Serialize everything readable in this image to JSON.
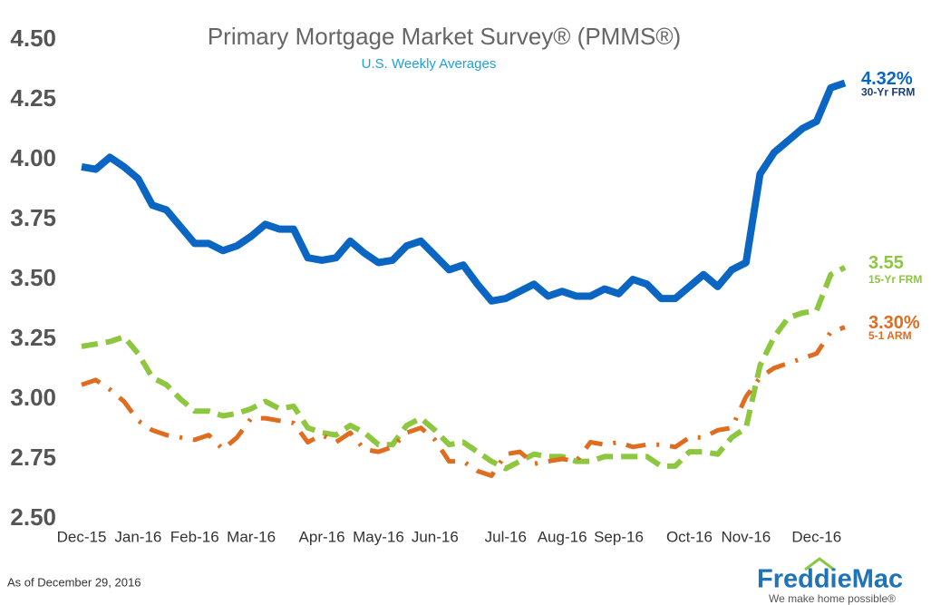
{
  "chart_data": {
    "type": "line",
    "title": "Primary Mortgage Market Survey® (PMMS®)",
    "subtitle": "U.S. Weekly Averages",
    "footnote": "As of December 29, 2016",
    "logo": "FreddieMac",
    "tagline": "We make home possible®",
    "categories": [
      "Dec-15",
      null,
      null,
      null,
      "Jan-16",
      null,
      null,
      null,
      "Feb-16",
      null,
      null,
      null,
      "Mar-16",
      null,
      null,
      null,
      null,
      "Apr-16",
      null,
      null,
      null,
      "May-16",
      null,
      null,
      null,
      "Jun-16",
      null,
      null,
      null,
      null,
      "Jul-16",
      null,
      null,
      null,
      "Aug-16",
      null,
      null,
      null,
      "Sep-16",
      null,
      null,
      null,
      null,
      "Oct-16",
      null,
      null,
      null,
      "Nov-16",
      null,
      null,
      null,
      null,
      "Dec-16",
      null,
      null
    ],
    "ylim": [
      2.5,
      4.5
    ],
    "yticks": [
      {
        "value": 2.5,
        "label": "2.50"
      },
      2.75,
      {
        "value": 3,
        "label": "3.00"
      },
      3.25,
      {
        "value": 3.5,
        "label": "3.50"
      },
      3.75,
      {
        "value": 4,
        "label": "4.00"
      },
      4.25,
      {
        "value": 4.5,
        "label": "4.50"
      }
    ],
    "grid": false,
    "series": [
      {
        "name": "30-Yr FRM",
        "color": "#0a66c2",
        "line_style": "solid",
        "values": [
          3.97,
          3.96,
          4.01,
          3.97,
          3.92,
          3.81,
          3.79,
          3.72,
          3.65,
          3.65,
          3.62,
          3.64,
          3.68,
          3.73,
          3.71,
          3.71,
          3.59,
          3.58,
          3.59,
          3.66,
          3.61,
          3.57,
          3.58,
          3.64,
          3.66,
          3.6,
          3.54,
          3.56,
          3.48,
          3.41,
          3.42,
          3.45,
          3.48,
          3.43,
          3.45,
          3.43,
          3.43,
          3.46,
          3.44,
          3.5,
          3.48,
          3.42,
          3.42,
          3.47,
          3.52,
          3.47,
          3.54,
          3.57,
          3.94,
          4.03,
          4.08,
          4.13,
          4.16,
          4.3,
          4.32
        ],
        "value_labels": [
          null,
          null,
          null,
          null,
          null,
          null,
          null,
          null,
          null,
          null,
          null,
          null,
          null,
          null,
          null,
          null,
          null,
          null,
          null,
          null,
          null,
          null,
          null,
          null,
          null,
          null,
          null,
          null,
          null,
          null,
          null,
          null,
          null,
          null,
          null,
          null,
          null,
          null,
          null,
          null,
          null,
          null,
          null,
          null,
          null,
          null,
          null,
          null,
          null,
          null,
          null,
          null,
          null,
          null,
          "4.32%"
        ]
      },
      {
        "name": "15-Yr FRM",
        "color": "#8dc63f",
        "line_style": "dashed",
        "values": [
          3.22,
          3.23,
          3.24,
          3.26,
          3.19,
          3.09,
          3.06,
          3.0,
          2.95,
          2.95,
          2.93,
          2.94,
          2.96,
          2.99,
          2.96,
          2.97,
          2.88,
          2.86,
          2.85,
          2.89,
          2.86,
          2.81,
          2.81,
          2.89,
          2.92,
          2.87,
          2.81,
          2.82,
          2.78,
          2.74,
          2.71,
          2.74,
          2.77,
          2.76,
          2.76,
          2.74,
          2.74,
          2.76,
          2.76,
          2.76,
          2.76,
          2.72,
          2.72,
          2.78,
          2.78,
          2.77,
          2.84,
          2.88,
          3.14,
          3.26,
          3.34,
          3.36,
          3.37,
          3.52,
          3.55
        ]
      },
      {
        "name": "5-1 ARM",
        "color": "#e06c1f",
        "line_style": "dashdot",
        "values": [
          3.06,
          3.08,
          3.04,
          2.99,
          2.91,
          2.87,
          2.85,
          2.84,
          2.83,
          2.85,
          2.79,
          2.84,
          2.92,
          2.92,
          2.91,
          2.9,
          2.82,
          2.85,
          2.82,
          2.86,
          2.79,
          2.78,
          2.8,
          2.86,
          2.88,
          2.83,
          2.74,
          2.74,
          2.7,
          2.68,
          2.77,
          2.78,
          2.73,
          2.74,
          2.75,
          2.74,
          2.82,
          2.81,
          2.82,
          2.8,
          2.81,
          2.81,
          2.8,
          2.84,
          2.84,
          2.87,
          2.88,
          3.01,
          3.09,
          3.13,
          3.15,
          3.17,
          3.19,
          3.28,
          3.3
        ],
        "value_labels": [
          null,
          null,
          null,
          null,
          null,
          null,
          null,
          null,
          null,
          null,
          null,
          null,
          null,
          null,
          null,
          null,
          null,
          null,
          null,
          null,
          null,
          null,
          null,
          null,
          null,
          null,
          null,
          null,
          null,
          null,
          null,
          null,
          null,
          null,
          null,
          null,
          null,
          null,
          null,
          null,
          null,
          null,
          null,
          null,
          null,
          null,
          null,
          null,
          null,
          null,
          null,
          null,
          null,
          null,
          "3.30%"
        ]
      }
    ]
  }
}
